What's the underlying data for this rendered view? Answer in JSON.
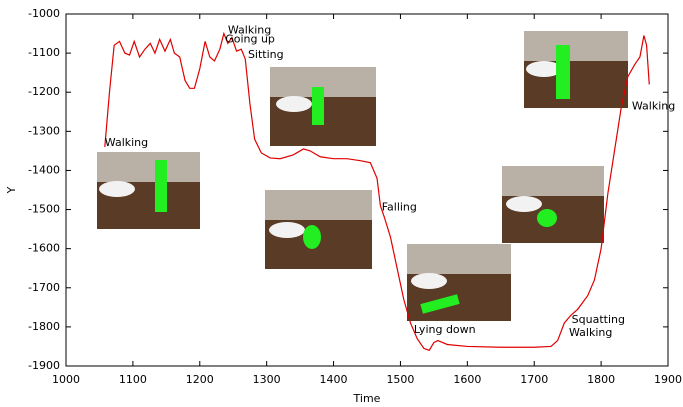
{
  "chart_data": {
    "type": "line",
    "x_label": "Time",
    "y_label": "Y",
    "xlim": [
      1000,
      1900
    ],
    "ylim": [
      -1900,
      -1000
    ],
    "xticks": [
      1000,
      1100,
      1200,
      1300,
      1400,
      1500,
      1600,
      1700,
      1800,
      1900
    ],
    "yticks": [
      -1900,
      -1800,
      -1700,
      -1600,
      -1500,
      -1400,
      -1300,
      -1200,
      -1100,
      -1000
    ],
    "series": [
      {
        "color": "#e00000",
        "x": [
          1058,
          1065,
          1072,
          1080,
          1088,
          1095,
          1102,
          1110,
          1118,
          1126,
          1133,
          1140,
          1148,
          1156,
          1162,
          1170,
          1178,
          1185,
          1192,
          1200,
          1208,
          1215,
          1222,
          1230,
          1236,
          1242,
          1248,
          1255,
          1262,
          1268,
          1275,
          1282,
          1292,
          1305,
          1320,
          1340,
          1355,
          1365,
          1380,
          1400,
          1420,
          1440,
          1455,
          1465,
          1470,
          1476,
          1485,
          1495,
          1505,
          1515,
          1525,
          1535,
          1543,
          1550,
          1556,
          1570,
          1600,
          1650,
          1700,
          1725,
          1735,
          1745,
          1755,
          1765,
          1780,
          1790,
          1800,
          1810,
          1820,
          1830,
          1840,
          1850,
          1858,
          1864,
          1868,
          1872
        ],
        "values": [
          -1340,
          -1200,
          -1080,
          -1070,
          -1100,
          -1105,
          -1070,
          -1110,
          -1090,
          -1075,
          -1100,
          -1065,
          -1095,
          -1065,
          -1100,
          -1110,
          -1170,
          -1190,
          -1190,
          -1140,
          -1070,
          -1110,
          -1120,
          -1090,
          -1050,
          -1075,
          -1060,
          -1095,
          -1090,
          -1115,
          -1230,
          -1320,
          -1355,
          -1368,
          -1370,
          -1360,
          -1345,
          -1350,
          -1365,
          -1370,
          -1370,
          -1375,
          -1380,
          -1420,
          -1490,
          -1520,
          -1570,
          -1650,
          -1730,
          -1790,
          -1830,
          -1855,
          -1860,
          -1840,
          -1835,
          -1845,
          -1850,
          -1852,
          -1852,
          -1850,
          -1835,
          -1790,
          -1770,
          -1755,
          -1720,
          -1680,
          -1600,
          -1460,
          -1350,
          -1240,
          -1160,
          -1130,
          -1110,
          -1055,
          -1080,
          -1180
        ]
      }
    ],
    "annotations": [
      {
        "text": "Walking",
        "x": 1058,
        "y": -1330
      },
      {
        "text": "Walking",
        "x": 1242,
        "y": -1042
      },
      {
        "text": "Going up",
        "x": 1238,
        "y": -1065
      },
      {
        "text": "Sitting",
        "x": 1272,
        "y": -1105
      },
      {
        "text": "Falling",
        "x": 1472,
        "y": -1495
      },
      {
        "text": "Lying down",
        "x": 1520,
        "y": -1808
      },
      {
        "text": "Squatting",
        "x": 1756,
        "y": -1783
      },
      {
        "text": "Walking",
        "x": 1752,
        "y": -1815
      },
      {
        "text": "Walking",
        "x": 1846,
        "y": -1237
      }
    ]
  }
}
